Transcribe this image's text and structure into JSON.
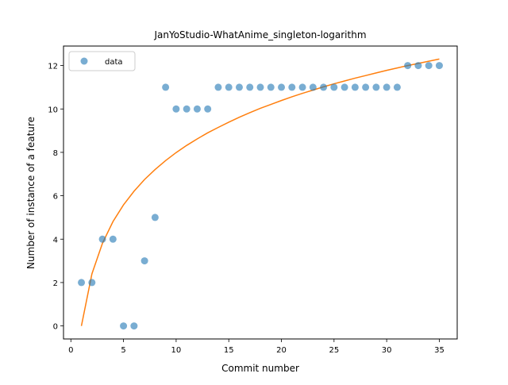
{
  "chart_data": {
    "type": "scatter",
    "title": "JanYoStudio-WhatAnime_singleton-logarithm",
    "xlabel": "Commit number",
    "ylabel": "Number of instance of a feature",
    "xlim": [
      -0.7,
      36.7
    ],
    "ylim": [
      -0.6,
      12.9
    ],
    "xticks": [
      0,
      5,
      10,
      15,
      20,
      25,
      30,
      35
    ],
    "yticks": [
      0,
      2,
      4,
      6,
      8,
      10,
      12
    ],
    "grid": false,
    "legend": {
      "placement": "upper-left",
      "entries": [
        "data"
      ]
    },
    "series": [
      {
        "name": "data",
        "kind": "scatter",
        "color": "#1f77b4",
        "x": [
          1,
          2,
          3,
          4,
          5,
          6,
          7,
          8,
          9,
          10,
          11,
          12,
          13,
          14,
          15,
          16,
          17,
          18,
          19,
          20,
          21,
          22,
          23,
          24,
          25,
          26,
          27,
          28,
          29,
          30,
          31,
          32,
          33,
          34,
          35
        ],
        "y": [
          2,
          2,
          4,
          4,
          0,
          0,
          3,
          5,
          11,
          10,
          10,
          10,
          10,
          11,
          11,
          11,
          11,
          11,
          11,
          11,
          11,
          11,
          11,
          11,
          11,
          11,
          11,
          11,
          11,
          11,
          11,
          12,
          12,
          12,
          12
        ]
      },
      {
        "kind": "line",
        "color": "#ff7f0e",
        "x": [
          1,
          2,
          3,
          4,
          5,
          6,
          7,
          8,
          9,
          10,
          11,
          12,
          13,
          14,
          15,
          16,
          17,
          18,
          19,
          20,
          21,
          22,
          23,
          24,
          25,
          26,
          27,
          28,
          29,
          30,
          31,
          32,
          33,
          34,
          35
        ],
        "y": [
          0,
          2.4,
          3.81,
          4.81,
          5.58,
          6.21,
          6.75,
          7.21,
          7.62,
          7.99,
          8.32,
          8.62,
          8.9,
          9.15,
          9.39,
          9.62,
          9.83,
          10.03,
          10.21,
          10.39,
          10.56,
          10.72,
          10.87,
          11.02,
          11.16,
          11.29,
          11.42,
          11.54,
          11.66,
          11.78,
          11.89,
          12.0,
          12.1,
          12.2,
          12.3
        ]
      }
    ]
  }
}
